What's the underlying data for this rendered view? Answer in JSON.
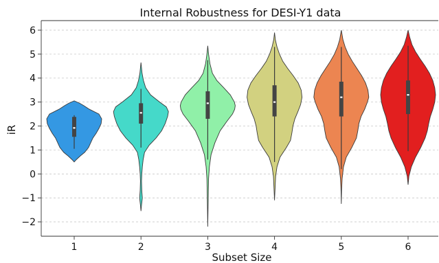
{
  "chart_data": {
    "type": "violin",
    "title": "Internal Robustness for DESI-Y1 data",
    "xlabel": "Subset Size",
    "ylabel": "iR",
    "categories": [
      "1",
      "2",
      "3",
      "4",
      "5",
      "6"
    ],
    "ylim": [
      -2.6,
      6.4
    ],
    "yticks": [
      -2,
      -1,
      0,
      1,
      2,
      3,
      4,
      5,
      6
    ],
    "ytick_labels": [
      "−2",
      "−1",
      "0",
      "1",
      "2",
      "3",
      "4",
      "5",
      "6"
    ],
    "grid": "horizontal dashed",
    "colors": [
      "#3498e3",
      "#45d9c9",
      "#90f0a8",
      "#d2d180",
      "#ec8551",
      "#e21f1f"
    ],
    "violins": [
      {
        "category": "1",
        "min": 0.5,
        "max": 3.05,
        "whisker": [
          1.05,
          2.45
        ],
        "q1": 1.55,
        "median": 1.92,
        "q3": 2.38,
        "profile": [
          [
            0.5,
            0.0
          ],
          [
            0.6,
            0.08
          ],
          [
            0.75,
            0.22
          ],
          [
            0.9,
            0.38
          ],
          [
            1.1,
            0.52
          ],
          [
            1.3,
            0.6
          ],
          [
            1.5,
            0.68
          ],
          [
            1.7,
            0.8
          ],
          [
            1.9,
            0.9
          ],
          [
            2.1,
            0.98
          ],
          [
            2.3,
            1.0
          ],
          [
            2.5,
            0.9
          ],
          [
            2.7,
            0.55
          ],
          [
            2.85,
            0.35
          ],
          [
            2.95,
            0.2
          ],
          [
            3.05,
            0.0
          ]
        ]
      },
      {
        "category": "2",
        "min": -1.55,
        "max": 4.65,
        "whisker": [
          1.1,
          3.55
        ],
        "q1": 2.1,
        "median": 2.55,
        "q3": 2.95,
        "profile": [
          [
            -1.55,
            0.0
          ],
          [
            -1.3,
            0.02
          ],
          [
            -1.0,
            0.05
          ],
          [
            -0.7,
            0.03
          ],
          [
            -0.3,
            0.02
          ],
          [
            0.0,
            0.03
          ],
          [
            0.3,
            0.05
          ],
          [
            0.6,
            0.08
          ],
          [
            0.9,
            0.13
          ],
          [
            1.2,
            0.3
          ],
          [
            1.5,
            0.55
          ],
          [
            1.8,
            0.75
          ],
          [
            2.1,
            0.88
          ],
          [
            2.4,
            0.97
          ],
          [
            2.6,
            1.0
          ],
          [
            2.8,
            0.92
          ],
          [
            3.0,
            0.68
          ],
          [
            3.3,
            0.35
          ],
          [
            3.6,
            0.17
          ],
          [
            3.9,
            0.09
          ],
          [
            4.2,
            0.04
          ],
          [
            4.65,
            0.0
          ]
        ]
      },
      {
        "category": "3",
        "min": -2.2,
        "max": 5.35,
        "whisker": [
          0.6,
          4.75
        ],
        "q1": 2.3,
        "median": 2.95,
        "q3": 3.45,
        "profile": [
          [
            -2.2,
            0.0
          ],
          [
            -1.5,
            0.01
          ],
          [
            -0.8,
            0.02
          ],
          [
            -0.2,
            0.03
          ],
          [
            0.3,
            0.06
          ],
          [
            0.8,
            0.12
          ],
          [
            1.3,
            0.26
          ],
          [
            1.8,
            0.45
          ],
          [
            2.2,
            0.7
          ],
          [
            2.5,
            0.9
          ],
          [
            2.7,
            0.98
          ],
          [
            2.85,
            1.0
          ],
          [
            3.0,
            0.97
          ],
          [
            3.3,
            0.82
          ],
          [
            3.6,
            0.58
          ],
          [
            3.9,
            0.33
          ],
          [
            4.2,
            0.17
          ],
          [
            4.6,
            0.08
          ],
          [
            5.0,
            0.03
          ],
          [
            5.35,
            0.0
          ]
        ]
      },
      {
        "category": "4",
        "min": -1.1,
        "max": 5.9,
        "whisker": [
          0.5,
          5.3
        ],
        "q1": 2.4,
        "median": 3.0,
        "q3": 3.7,
        "profile": [
          [
            -1.1,
            0.0
          ],
          [
            -0.6,
            0.02
          ],
          [
            -0.1,
            0.04
          ],
          [
            0.3,
            0.09
          ],
          [
            0.7,
            0.2
          ],
          [
            1.1,
            0.43
          ],
          [
            1.4,
            0.58
          ],
          [
            1.7,
            0.63
          ],
          [
            2.0,
            0.67
          ],
          [
            2.3,
            0.74
          ],
          [
            2.6,
            0.85
          ],
          [
            2.9,
            0.95
          ],
          [
            3.2,
            1.0
          ],
          [
            3.5,
            0.97
          ],
          [
            3.8,
            0.86
          ],
          [
            4.1,
            0.68
          ],
          [
            4.4,
            0.48
          ],
          [
            4.7,
            0.3
          ],
          [
            5.0,
            0.18
          ],
          [
            5.3,
            0.09
          ],
          [
            5.6,
            0.03
          ],
          [
            5.9,
            0.0
          ]
        ]
      },
      {
        "category": "5",
        "min": -1.25,
        "max": 6.0,
        "whisker": [
          0.2,
          5.3
        ],
        "q1": 2.4,
        "median": 3.2,
        "q3": 3.85,
        "profile": [
          [
            -1.25,
            0.0
          ],
          [
            -0.7,
            0.01
          ],
          [
            -0.2,
            0.03
          ],
          [
            0.3,
            0.08
          ],
          [
            0.7,
            0.18
          ],
          [
            1.1,
            0.38
          ],
          [
            1.5,
            0.55
          ],
          [
            1.8,
            0.6
          ],
          [
            2.1,
            0.64
          ],
          [
            2.4,
            0.72
          ],
          [
            2.7,
            0.85
          ],
          [
            3.0,
            0.95
          ],
          [
            3.2,
            1.0
          ],
          [
            3.5,
            0.97
          ],
          [
            3.8,
            0.88
          ],
          [
            4.1,
            0.74
          ],
          [
            4.4,
            0.57
          ],
          [
            4.7,
            0.4
          ],
          [
            5.0,
            0.25
          ],
          [
            5.3,
            0.14
          ],
          [
            5.6,
            0.06
          ],
          [
            6.0,
            0.0
          ]
        ]
      },
      {
        "category": "6",
        "min": -0.45,
        "max": 6.0,
        "whisker": [
          0.95,
          5.35
        ],
        "q1": 2.5,
        "median": 3.3,
        "q3": 3.9,
        "profile": [
          [
            -0.45,
            0.0
          ],
          [
            -0.1,
            0.03
          ],
          [
            0.3,
            0.12
          ],
          [
            0.7,
            0.27
          ],
          [
            1.1,
            0.46
          ],
          [
            1.5,
            0.62
          ],
          [
            1.8,
            0.7
          ],
          [
            2.1,
            0.75
          ],
          [
            2.4,
            0.81
          ],
          [
            2.7,
            0.9
          ],
          [
            3.0,
            0.97
          ],
          [
            3.3,
            1.0
          ],
          [
            3.6,
            0.97
          ],
          [
            3.9,
            0.9
          ],
          [
            4.2,
            0.78
          ],
          [
            4.5,
            0.62
          ],
          [
            4.8,
            0.44
          ],
          [
            5.1,
            0.27
          ],
          [
            5.4,
            0.14
          ],
          [
            5.7,
            0.06
          ],
          [
            6.0,
            0.0
          ]
        ]
      }
    ]
  }
}
